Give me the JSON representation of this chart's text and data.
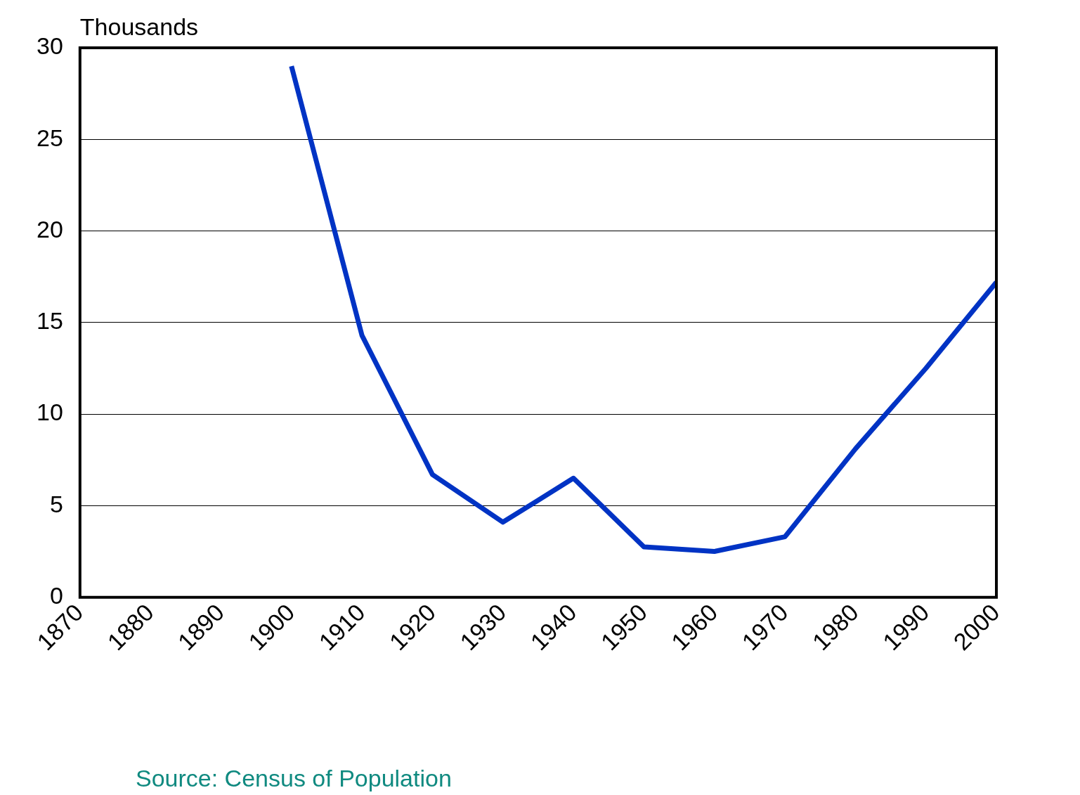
{
  "chart_data": {
    "type": "line",
    "ylabel": "Thousands",
    "x": [
      1900,
      1910,
      1920,
      1930,
      1940,
      1950,
      1960,
      1970,
      1980,
      1990,
      2000
    ],
    "values": [
      29,
      14.3,
      6.7,
      4.1,
      6.5,
      2.75,
      2.5,
      3.3,
      8.1,
      12.5,
      17.2
    ],
    "color": "#0033c4",
    "marker": "none",
    "legend": false,
    "grid": "y",
    "xlim": [
      1870,
      2000
    ],
    "xticks": [
      1870,
      1880,
      1890,
      1900,
      1910,
      1920,
      1930,
      1940,
      1950,
      1960,
      1970,
      1980,
      1990,
      2000
    ],
    "ylim": [
      0,
      30
    ],
    "yticks": [
      0,
      5,
      10,
      15,
      20,
      25,
      30
    ],
    "annotations": [
      "Source: Census of Population"
    ]
  }
}
